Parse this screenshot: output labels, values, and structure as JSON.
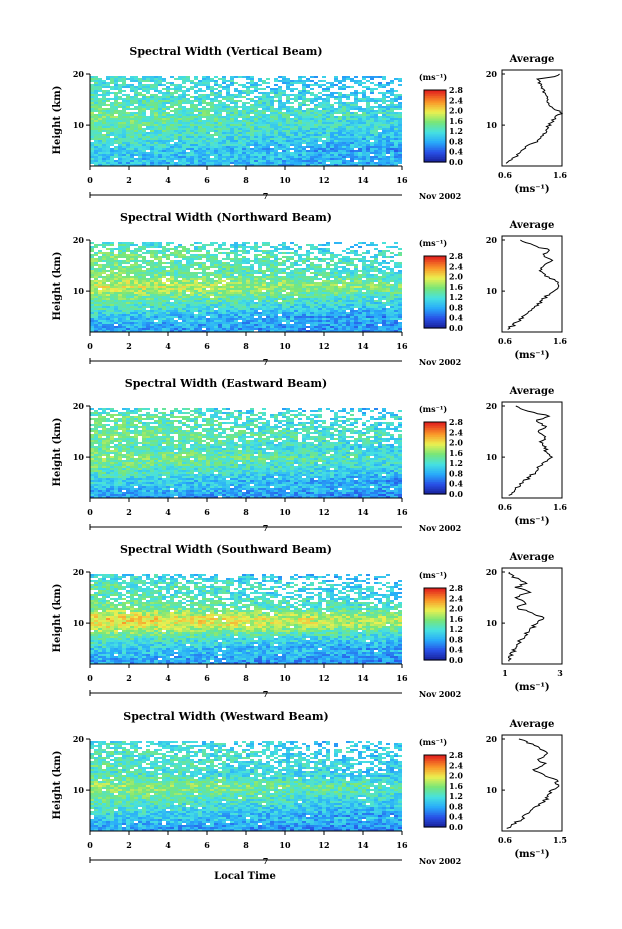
{
  "common": {
    "ylabel": "Height (km)",
    "cb_unit": "(ms⁻¹)",
    "avg_title": "Average",
    "avg_xlabel": "(ms⁻¹)",
    "date_label": "Nov 2002",
    "day_label": "7",
    "xlabel": "Local Time"
  },
  "chart_data": [
    {
      "type": "heatmap",
      "title": "Spectral Width (Vertical Beam)",
      "xlabel": "Local Time",
      "ylabel": "Height (km)",
      "x_range": [
        0,
        16
      ],
      "data_x_range": [
        0,
        16
      ],
      "ylim": [
        2,
        20
      ],
      "x_ticks": [
        0,
        2,
        4,
        6,
        8,
        10,
        12,
        14,
        16
      ],
      "y_ticks": [
        10,
        20
      ],
      "colorbar": {
        "unit": "(ms⁻¹)",
        "range": [
          0,
          2.8
        ],
        "ticks": [
          "0.0",
          "0.4",
          "0.8",
          "1.2",
          "1.6",
          "2.0",
          "2.4",
          "2.8"
        ]
      },
      "profile": [
        [
          2.5,
          0.95
        ],
        [
          4,
          1.0
        ],
        [
          5,
          1.05
        ],
        [
          6,
          1.15
        ],
        [
          7,
          1.25
        ],
        [
          8,
          1.32
        ],
        [
          9,
          1.38
        ],
        [
          10,
          1.42
        ],
        [
          11,
          1.48
        ],
        [
          12,
          1.5
        ],
        [
          13,
          1.45
        ],
        [
          14,
          1.42
        ],
        [
          15,
          1.38
        ],
        [
          16,
          1.35
        ],
        [
          17,
          1.28
        ],
        [
          18,
          1.22
        ],
        [
          19,
          1.25
        ],
        [
          20,
          1.2
        ]
      ],
      "avg": {
        "title": "Average",
        "xlim": [
          0.6,
          1.6
        ],
        "xticks": [
          "0.6",
          "1.6"
        ],
        "xlabel": "(ms⁻¹)"
      },
      "avg_profile": [
        [
          2.5,
          0.7
        ],
        [
          3,
          0.75
        ],
        [
          4,
          0.85
        ],
        [
          5,
          0.95
        ],
        [
          6,
          1.05
        ],
        [
          7,
          1.2
        ],
        [
          8,
          1.3
        ],
        [
          9,
          1.35
        ],
        [
          10,
          1.38
        ],
        [
          11,
          1.45
        ],
        [
          12,
          1.55
        ],
        [
          12.5,
          1.6
        ],
        [
          13,
          1.5
        ],
        [
          14,
          1.4
        ],
        [
          15,
          1.35
        ],
        [
          16,
          1.3
        ],
        [
          17,
          1.3
        ],
        [
          18,
          1.25
        ],
        [
          19,
          1.2
        ],
        [
          19.5,
          1.5
        ],
        [
          20,
          1.6
        ]
      ],
      "day": "7",
      "date": "Nov 2002"
    },
    {
      "type": "heatmap",
      "title": "Spectral Width (Northward Beam)",
      "xlabel": "Local Time",
      "ylabel": "Height (km)",
      "x_range": [
        0,
        16
      ],
      "data_x_range": [
        0,
        16
      ],
      "ylim": [
        2,
        20
      ],
      "x_ticks": [
        0,
        2,
        4,
        6,
        8,
        10,
        12,
        14,
        16
      ],
      "y_ticks": [
        10,
        20
      ],
      "colorbar": {
        "unit": "(ms⁻¹)",
        "range": [
          0,
          2.8
        ],
        "ticks": [
          "0.0",
          "0.4",
          "0.8",
          "1.2",
          "1.6",
          "2.0",
          "2.4",
          "2.8"
        ]
      },
      "profile": [
        [
          2.5,
          0.8
        ],
        [
          4,
          0.9
        ],
        [
          5,
          1.0
        ],
        [
          6,
          1.15
        ],
        [
          7,
          1.3
        ],
        [
          8,
          1.45
        ],
        [
          9,
          1.55
        ],
        [
          10,
          1.75
        ],
        [
          11,
          1.9
        ],
        [
          12,
          1.8
        ],
        [
          13,
          1.6
        ],
        [
          14,
          1.5
        ],
        [
          15,
          1.55
        ],
        [
          16,
          1.5
        ],
        [
          17,
          1.55
        ],
        [
          18,
          1.45
        ],
        [
          19,
          1.3
        ],
        [
          20,
          1.3
        ]
      ],
      "avg": {
        "title": "Average",
        "xlim": [
          0.6,
          1.6
        ],
        "xticks": [
          "0.6",
          "1.6"
        ],
        "xlabel": "(ms⁻¹)"
      },
      "avg_profile": [
        [
          2.5,
          0.7
        ],
        [
          3,
          0.75
        ],
        [
          4,
          0.85
        ],
        [
          5,
          0.95
        ],
        [
          6,
          1.05
        ],
        [
          7,
          1.15
        ],
        [
          8,
          1.25
        ],
        [
          9,
          1.35
        ],
        [
          10,
          1.45
        ],
        [
          11,
          1.55
        ],
        [
          12,
          1.5
        ],
        [
          13,
          1.35
        ],
        [
          14,
          1.2
        ],
        [
          15,
          1.3
        ],
        [
          16,
          1.45
        ],
        [
          17,
          1.3
        ],
        [
          18,
          1.4
        ],
        [
          19,
          1.1
        ],
        [
          20,
          0.9
        ]
      ],
      "day": "7",
      "date": "Nov 2002"
    },
    {
      "type": "heatmap",
      "title": "Spectral Width (Eastward Beam)",
      "xlabel": "Local Time",
      "ylabel": "Height (km)",
      "x_range": [
        0,
        16
      ],
      "data_x_range": [
        0,
        16
      ],
      "ylim": [
        2,
        20
      ],
      "x_ticks": [
        0,
        2,
        4,
        6,
        8,
        10,
        12,
        14,
        16
      ],
      "y_ticks": [
        10,
        20
      ],
      "colorbar": {
        "unit": "(ms⁻¹)",
        "range": [
          0,
          2.8
        ],
        "ticks": [
          "0.0",
          "0.4",
          "0.8",
          "1.2",
          "1.6",
          "2.0",
          "2.4",
          "2.8"
        ]
      },
      "profile": [
        [
          2.5,
          0.8
        ],
        [
          4,
          0.95
        ],
        [
          5,
          1.05
        ],
        [
          6,
          1.15
        ],
        [
          7,
          1.3
        ],
        [
          8,
          1.4
        ],
        [
          9,
          1.5
        ],
        [
          10,
          1.6
        ],
        [
          11,
          1.5
        ],
        [
          12,
          1.4
        ],
        [
          13,
          1.45
        ],
        [
          14,
          1.55
        ],
        [
          15,
          1.5
        ],
        [
          16,
          1.45
        ],
        [
          17,
          1.4
        ],
        [
          18,
          1.5
        ],
        [
          19,
          1.3
        ],
        [
          20,
          1.2
        ]
      ],
      "avg": {
        "title": "Average",
        "xlim": [
          0.6,
          1.6
        ],
        "xticks": [
          "0.6",
          "1.6"
        ],
        "xlabel": "(ms⁻¹)"
      },
      "avg_profile": [
        [
          2.5,
          0.7
        ],
        [
          3,
          0.75
        ],
        [
          4,
          0.85
        ],
        [
          5,
          0.95
        ],
        [
          6,
          1.05
        ],
        [
          7,
          1.15
        ],
        [
          8,
          1.2
        ],
        [
          9,
          1.3
        ],
        [
          10,
          1.4
        ],
        [
          11,
          1.35
        ],
        [
          12,
          1.3
        ],
        [
          13,
          1.25
        ],
        [
          14,
          1.35
        ],
        [
          15,
          1.2
        ],
        [
          16,
          1.35
        ],
        [
          17,
          1.15
        ],
        [
          18,
          1.4
        ],
        [
          19,
          1.0
        ],
        [
          20,
          0.8
        ]
      ],
      "day": "7",
      "date": "Nov 2002"
    },
    {
      "type": "heatmap",
      "title": "Spectral Width (Southward Beam)",
      "xlabel": "Local Time",
      "ylabel": "Height (km)",
      "x_range": [
        0,
        16
      ],
      "data_x_range": [
        0,
        16
      ],
      "ylim": [
        2,
        20
      ],
      "x_ticks": [
        0,
        2,
        4,
        6,
        8,
        10,
        12,
        14,
        16
      ],
      "y_ticks": [
        10,
        20
      ],
      "colorbar": {
        "unit": "(ms⁻¹)",
        "range": [
          0,
          2.8
        ],
        "ticks": [
          "0.0",
          "0.4",
          "0.8",
          "1.2",
          "1.6",
          "2.0",
          "2.4",
          "2.8"
        ]
      },
      "profile": [
        [
          2.5,
          0.8
        ],
        [
          4,
          0.95
        ],
        [
          5,
          1.05
        ],
        [
          6,
          1.2
        ],
        [
          7,
          1.35
        ],
        [
          8,
          1.55
        ],
        [
          9,
          1.8
        ],
        [
          10,
          2.05
        ],
        [
          11,
          2.1
        ],
        [
          12,
          1.85
        ],
        [
          13,
          1.6
        ],
        [
          14,
          1.5
        ],
        [
          15,
          1.4
        ],
        [
          16,
          1.3
        ],
        [
          17,
          1.4
        ],
        [
          18,
          1.35
        ],
        [
          19,
          1.2
        ],
        [
          20,
          1.1
        ]
      ],
      "avg": {
        "title": "Average",
        "xlim": [
          0.6,
          3.0
        ],
        "xticks": [
          "1",
          "3"
        ],
        "xlabel": "(ms⁻¹)"
      },
      "avg_profile": [
        [
          2.5,
          0.8
        ],
        [
          3,
          0.9
        ],
        [
          4,
          1.0
        ],
        [
          5,
          1.1
        ],
        [
          6,
          1.25
        ],
        [
          7,
          1.4
        ],
        [
          8,
          1.6
        ],
        [
          9,
          1.8
        ],
        [
          10,
          2.0
        ],
        [
          11,
          2.3
        ],
        [
          12,
          1.8
        ],
        [
          13,
          1.2
        ],
        [
          14,
          1.6
        ],
        [
          15,
          1.1
        ],
        [
          16,
          1.7
        ],
        [
          17,
          1.2
        ],
        [
          18,
          1.6
        ],
        [
          19,
          1.0
        ],
        [
          20,
          0.9
        ]
      ],
      "day": "7",
      "date": "Nov 2002"
    },
    {
      "type": "heatmap",
      "title": "Spectral Width (Westward Beam)",
      "xlabel": "Local Time",
      "ylabel": "Height (km)",
      "x_range": [
        0,
        16
      ],
      "data_x_range": [
        0,
        16
      ],
      "ylim": [
        2,
        20
      ],
      "x_ticks": [
        0,
        2,
        4,
        6,
        8,
        10,
        12,
        14,
        16
      ],
      "y_ticks": [
        10,
        20
      ],
      "colorbar": {
        "unit": "(ms⁻¹)",
        "range": [
          0,
          2.8
        ],
        "ticks": [
          "0.0",
          "0.4",
          "0.8",
          "1.2",
          "1.6",
          "2.0",
          "2.4",
          "2.8"
        ]
      },
      "profile": [
        [
          2.5,
          0.8
        ],
        [
          4,
          0.95
        ],
        [
          5,
          1.05
        ],
        [
          6,
          1.2
        ],
        [
          7,
          1.3
        ],
        [
          8,
          1.4
        ],
        [
          9,
          1.5
        ],
        [
          10,
          1.6
        ],
        [
          11,
          1.7
        ],
        [
          12,
          1.5
        ],
        [
          13,
          1.35
        ],
        [
          14,
          1.3
        ],
        [
          15,
          1.4
        ],
        [
          16,
          1.35
        ],
        [
          17,
          1.3
        ],
        [
          18,
          1.35
        ],
        [
          19,
          1.25
        ],
        [
          20,
          1.15
        ]
      ],
      "avg": {
        "title": "Average",
        "xlim": [
          0.6,
          1.5
        ],
        "xticks": [
          "0.6",
          "1.5"
        ],
        "xlabel": "(ms⁻¹)"
      },
      "avg_profile": [
        [
          2.5,
          0.7
        ],
        [
          3,
          0.75
        ],
        [
          4,
          0.85
        ],
        [
          5,
          0.95
        ],
        [
          6,
          1.05
        ],
        [
          7,
          1.15
        ],
        [
          8,
          1.25
        ],
        [
          9,
          1.3
        ],
        [
          10,
          1.35
        ],
        [
          11,
          1.45
        ],
        [
          12,
          1.4
        ],
        [
          13,
          1.2
        ],
        [
          14,
          1.1
        ],
        [
          15,
          1.25
        ],
        [
          16,
          1.15
        ],
        [
          17,
          1.3
        ],
        [
          18,
          1.2
        ],
        [
          19,
          1.05
        ],
        [
          20,
          0.85
        ]
      ],
      "day": "7",
      "date": "Nov 2002"
    }
  ]
}
